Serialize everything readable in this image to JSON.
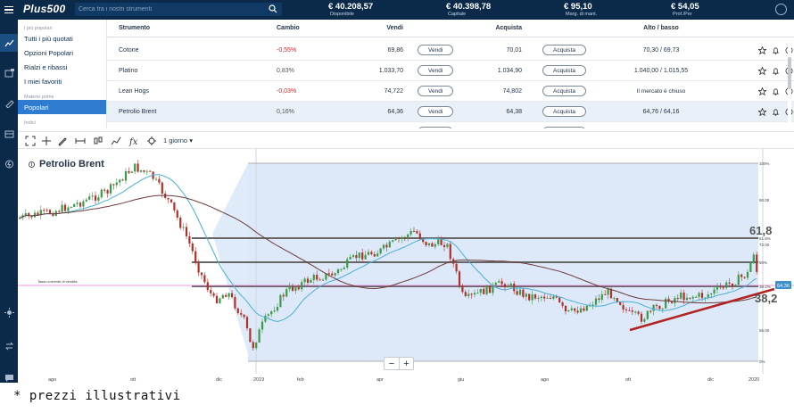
{
  "app": {
    "logo": "Plus500"
  },
  "search": {
    "placeholder": "Cerca tra i nostri strumenti"
  },
  "stats": [
    {
      "value": "€ 40.208,57",
      "label": "Disponibile"
    },
    {
      "value": "€ 40.398,78",
      "label": "Capitale"
    },
    {
      "value": "€ 95,10",
      "label": "Marg. di mant."
    },
    {
      "value": "€ 54,05",
      "label": "Prof./Per"
    }
  ],
  "menu": {
    "section1": "I più popolari",
    "items1": [
      "Tutti i più quotati",
      "Opzioni Popolari",
      "Rialzi e ribassi",
      "I miei favoriti"
    ],
    "section2": "Materie prime",
    "items2": [
      "Popolari"
    ],
    "section3": "Indici"
  },
  "table": {
    "headers": {
      "instrument": "Strumento",
      "change": "Cambio",
      "sell": "Vendi",
      "buy": "Acquista",
      "highlow": "Alto / basso"
    },
    "sell_label": "Vendi",
    "buy_label": "Acquista",
    "rows": [
      {
        "name": "Cotone",
        "change": "-0,55%",
        "sell": "69,86",
        "buy": "70,01",
        "highlow": "70,30 / 69,73"
      },
      {
        "name": "Platino",
        "change": "0,83%",
        "sell": "1.033,70",
        "buy": "1.034,90",
        "highlow": "1.040,00 / 1.015,55"
      },
      {
        "name": "Lean Hogs",
        "change": "-0,03%",
        "sell": "74,722",
        "buy": "74,802",
        "highlow": "Il mercato è chiuso"
      },
      {
        "name": "Petrolio Brent",
        "change": "0,16%",
        "sell": "64,36",
        "buy": "64,38",
        "highlow": "64,76 / 64,16"
      },
      {
        "name": "Zucchero",
        "change": "0,03%",
        "sell": "14,51",
        "buy": "14,54",
        "highlow": "14,57 / 14,46"
      }
    ]
  },
  "toolbar": {
    "period": "1 giorno"
  },
  "chart_data": {
    "type": "candlestick",
    "title": "Petrolio Brent",
    "x_labels": [
      "ago",
      "ott",
      "dic",
      "2019",
      "feb",
      "apr",
      "giu",
      "ago",
      "ott",
      "dic",
      "2020"
    ],
    "y_ticks": [
      "100%",
      "80.00",
      "61.8%",
      "72.00",
      "50%",
      "38.2%",
      "56.00",
      "0%"
    ],
    "fib_levels": [
      {
        "label": "100%",
        "pct": 100
      },
      {
        "label": "61.8%",
        "pct": 61.8
      },
      {
        "label": "50%",
        "pct": 50
      },
      {
        "label": "38.2%",
        "pct": 38.2
      },
      {
        "label": "0%",
        "pct": 0
      }
    ],
    "fib_big_labels": [
      "61,8",
      "38,2"
    ],
    "ma_label": "Tasso corrente di vendita",
    "price_tag": "64.36",
    "colors": {
      "up": "#3a9a48",
      "down": "#b0302a",
      "ma_fast": "#4ab0d6",
      "ma_slow": "#6b3a3a",
      "trend": "#b22222",
      "zone": "#dde9f8",
      "level": "#666666"
    }
  },
  "zoom": {
    "minus": "−",
    "plus": "+"
  },
  "footnote": "* prezzi illustrativi"
}
